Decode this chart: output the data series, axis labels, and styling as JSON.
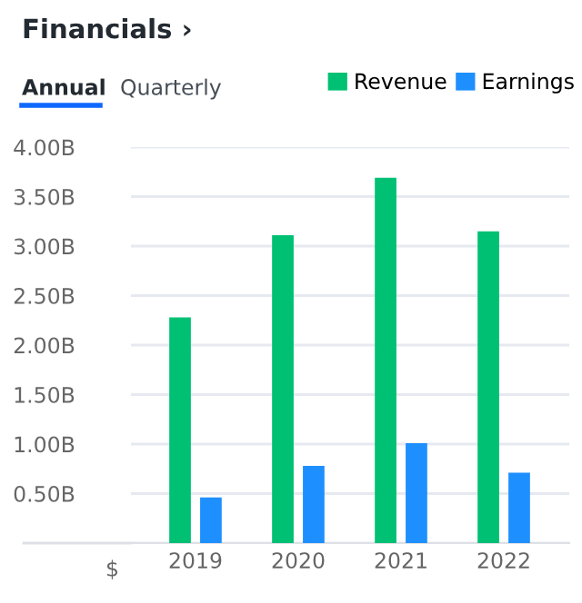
{
  "chart_data": {
    "type": "bar",
    "title": "Financials ›",
    "annotations": [
      "Annual",
      "Quarterly"
    ],
    "ylabel": "$",
    "categories": [
      "2019",
      "2020",
      "2021",
      "2022"
    ],
    "series": [
      {
        "name": "Revenue",
        "color": "#00c073",
        "values": [
          2.28,
          3.11,
          3.69,
          3.15
        ]
      },
      {
        "name": "Earnings",
        "color": "#1e8fff",
        "values": [
          0.46,
          0.78,
          1.01,
          0.71
        ]
      }
    ],
    "ylim": [
      0,
      4
    ],
    "yticks": [
      {
        "value": 0,
        "label": null
      },
      {
        "value": 0.5,
        "label": "0.50B"
      },
      {
        "value": 1,
        "label": "1.00B"
      },
      {
        "value": 1.5,
        "label": "1.50B"
      },
      {
        "value": 2,
        "label": "2.00B"
      },
      {
        "value": 2.5,
        "label": "2.50B"
      },
      {
        "value": 3,
        "label": "3.00B"
      },
      {
        "value": 3.5,
        "label": "3.50B"
      },
      {
        "value": 4,
        "label": "4.00B"
      }
    ],
    "grid": "y",
    "legend": "top right"
  }
}
